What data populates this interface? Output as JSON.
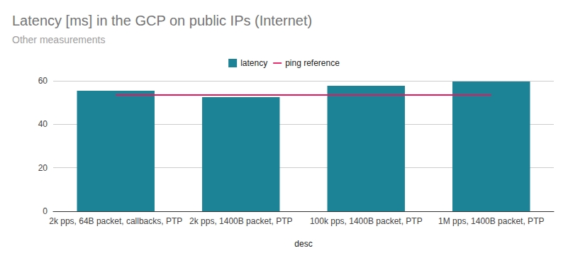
{
  "chart_data": {
    "type": "bar",
    "title": "Latency [ms] in the GCP on public IPs (Internet)",
    "subtitle": "Other measurements",
    "x_label": "desc",
    "categories": [
      "2k pps, 64B packet, callbacks, PTP",
      "2k pps, 1400B packet, PTP",
      "100k pps, 1400B packet, PTP",
      "1M pps, 1400B packet, PTP"
    ],
    "series": [
      {
        "name": "latency",
        "color": "#1c8296",
        "values": [
          55.4,
          52.5,
          57.7,
          59.7
        ]
      },
      {
        "name": "ping reference",
        "type": "line",
        "color": "#e8175d",
        "values": [
          53.5,
          53.5,
          53.5,
          53.5
        ]
      }
    ],
    "ylim": [
      0,
      60
    ],
    "yticks": [
      0,
      20,
      40,
      60
    ],
    "grid": true,
    "legend": "top"
  }
}
